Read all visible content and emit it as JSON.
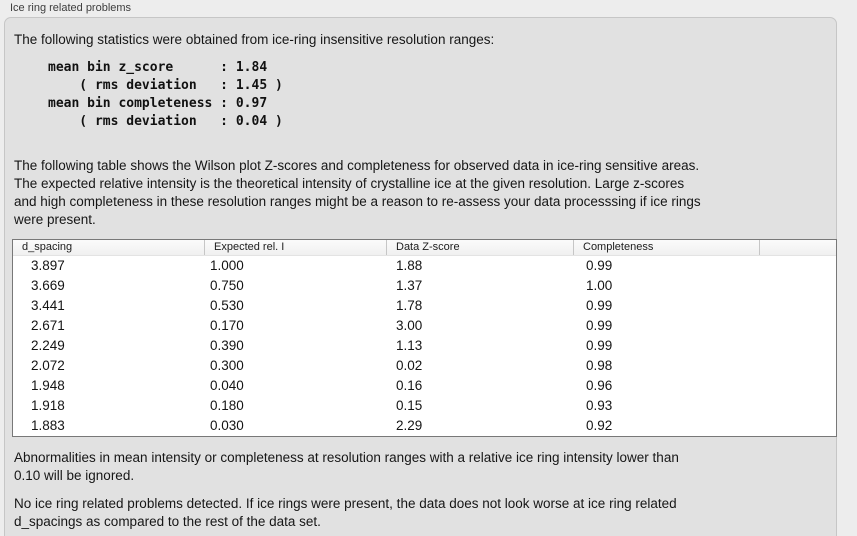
{
  "window": {
    "title": "Ice ring related problems"
  },
  "panel": {
    "intro": "The following statistics were obtained from ice-ring insensitive resolution ranges:",
    "stats_lines": [
      "mean bin z_score      : 1.84",
      "    ( rms deviation   : 1.45 )",
      "mean bin completeness : 0.97",
      "    ( rms deviation   : 0.04 )"
    ],
    "stats": {
      "mean_bin_z_score": "1.84",
      "z_score_rms_deviation": "1.45",
      "mean_bin_completeness": "0.97",
      "completeness_rms_deviation": "0.04"
    },
    "description": [
      "The following table shows the Wilson plot Z-scores and completeness for observed data in ice-ring sensitive areas.",
      "The expected relative intensity is the theoretical intensity of crystalline ice at the given resolution. Large z-scores",
      "and high completeness in these resolution ranges might be a reason to re-assess your data processsing if ice rings",
      "were present."
    ],
    "table": {
      "headers": [
        "d_spacing",
        "Expected rel. I",
        "Data Z-score",
        "Completeness",
        ""
      ],
      "rows": [
        [
          "3.897",
          "1.000",
          "1.88",
          "0.99"
        ],
        [
          "3.669",
          "0.750",
          "1.37",
          "1.00"
        ],
        [
          "3.441",
          "0.530",
          "1.78",
          "0.99"
        ],
        [
          "2.671",
          "0.170",
          "3.00",
          "0.99"
        ],
        [
          "2.249",
          "0.390",
          "1.13",
          "0.99"
        ],
        [
          "2.072",
          "0.300",
          "0.02",
          "0.98"
        ],
        [
          "1.948",
          "0.040",
          "0.16",
          "0.96"
        ],
        [
          "1.918",
          "0.180",
          "0.15",
          "0.93"
        ],
        [
          "1.883",
          "0.030",
          "2.29",
          "0.92"
        ]
      ]
    },
    "note": [
      "Abnormalities in mean intensity or completeness at resolution ranges with a relative ice ring intensity lower than",
      "0.10 will be ignored."
    ],
    "conclusion": [
      "No ice ring related problems detected. If ice rings were present, the data does not look worse at ice ring related",
      "d_spacings as compared to the rest of the data set."
    ]
  },
  "colors": {
    "page_background": "#ededed",
    "groupbox_background": "#e1e1e1",
    "groupbox_border": "#c6c6c6",
    "table_border": "#787878",
    "table_header_background": "#f5f5f5",
    "text": "#141414"
  }
}
